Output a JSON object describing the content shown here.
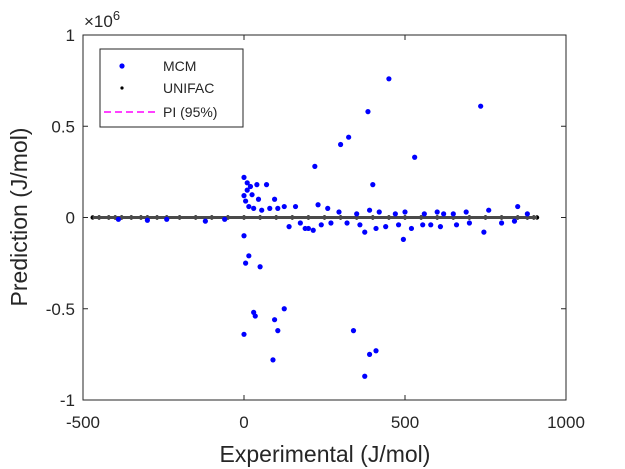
{
  "chart_data": {
    "type": "scatter",
    "xlabel": "Experimental (J/mol)",
    "ylabel": "Prediction (J/mol)",
    "xlim": [
      -500,
      1000
    ],
    "ylim": [
      -1000000,
      1000000
    ],
    "y_exponent_label": "×10",
    "y_exponent_power": "6",
    "x_ticks": [
      -500,
      0,
      500,
      1000
    ],
    "x_tick_labels": [
      "-500",
      "0",
      "500",
      "1000"
    ],
    "y_ticks": [
      1000000,
      500000,
      0,
      -500000,
      -1000000
    ],
    "y_tick_labels": [
      "1",
      "0.5",
      "0",
      "-0.5",
      "-1"
    ],
    "grid": false,
    "legend_position": "top-left",
    "colors": {
      "mcm": "#0000ff",
      "unifac": "#000000",
      "pi": "#ff00ff",
      "axes": "#262626"
    },
    "series": [
      {
        "name": "MCM",
        "marker": "dot",
        "x": [
          0,
          10,
          20,
          40,
          70,
          95,
          10,
          25,
          45,
          0,
          5,
          15,
          30,
          55,
          80,
          105,
          125,
          220,
          300,
          325,
          385,
          400,
          450,
          530,
          735,
          850,
          160,
          230,
          260,
          295,
          350,
          390,
          420,
          470,
          500,
          560,
          600,
          620,
          650,
          690,
          760,
          880,
          -390,
          -300,
          -240,
          -120,
          -60,
          320,
          360,
          375,
          410,
          440,
          480,
          495,
          520,
          555,
          580,
          610,
          660,
          700,
          745,
          800,
          840,
          200,
          215,
          240,
          270,
          140,
          175,
          190,
          0,
          5,
          50,
          95,
          105,
          125,
          15,
          30,
          35,
          0,
          90,
          340,
          375,
          390,
          410
        ],
        "y": [
          220000,
          190000,
          170000,
          180000,
          180000,
          100000,
          150000,
          125000,
          100000,
          120000,
          90000,
          60000,
          50000,
          40000,
          50000,
          50000,
          60000,
          280000,
          400000,
          440000,
          580000,
          180000,
          760000,
          330000,
          610000,
          60000,
          60000,
          70000,
          50000,
          30000,
          20000,
          40000,
          30000,
          20000,
          30000,
          20000,
          30000,
          20000,
          20000,
          30000,
          40000,
          20000,
          -10000,
          -15000,
          -10000,
          -20000,
          -10000,
          -30000,
          -40000,
          -80000,
          -60000,
          -50000,
          -40000,
          -120000,
          -60000,
          -40000,
          -40000,
          -50000,
          -40000,
          -30000,
          -80000,
          -30000,
          -20000,
          -60000,
          -70000,
          -40000,
          -30000,
          -50000,
          -30000,
          -60000,
          -100000,
          -250000,
          -270000,
          -560000,
          -620000,
          -500000,
          -210000,
          -520000,
          -540000,
          -640000,
          -780000,
          -620000,
          -870000,
          -750000,
          -730000
        ]
      },
      {
        "name": "UNIFAC",
        "marker": "small-dot",
        "x": [
          -470,
          -450,
          -420,
          -400,
          -380,
          -350,
          -320,
          -300,
          -270,
          -240,
          -200,
          -150,
          -100,
          -50,
          0,
          50,
          100,
          150,
          200,
          250,
          300,
          350,
          400,
          450,
          500,
          550,
          600,
          650,
          700,
          750,
          800,
          850,
          880,
          900,
          910
        ],
        "y": [
          0,
          0,
          0,
          0,
          0,
          0,
          0,
          0,
          0,
          0,
          0,
          0,
          0,
          0,
          0,
          0,
          0,
          0,
          0,
          0,
          0,
          0,
          0,
          0,
          0,
          0,
          0,
          0,
          0,
          0,
          0,
          0,
          0,
          0,
          0
        ]
      },
      {
        "name": "PI (95%)",
        "marker": "dashed-line",
        "x": [
          -470,
          910
        ],
        "y": [
          0,
          0
        ]
      }
    ]
  }
}
